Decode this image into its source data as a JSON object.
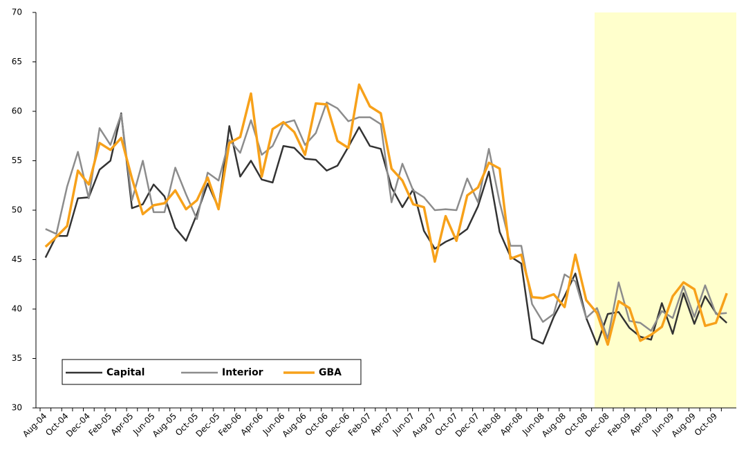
{
  "chart_data": {
    "type": "line",
    "categories": [
      "Aug-04",
      null,
      "Oct-04",
      null,
      "Dec-04",
      null,
      "Feb-05",
      null,
      "Apr-05",
      null,
      "Jun-05",
      null,
      "Aug-05",
      null,
      "Oct-05",
      null,
      "Dec-05",
      null,
      "Feb-06",
      null,
      "Apr-06",
      null,
      "Jun-06",
      null,
      "Aug-06",
      null,
      "Oct-06",
      null,
      "Dec-06",
      null,
      "Feb-07",
      null,
      "Apr-07",
      null,
      "Jun-07",
      null,
      "Aug-07",
      null,
      "Oct-07",
      null,
      "Dec-07",
      null,
      "Feb-08",
      null,
      "Apr-08",
      null,
      "Jun-08",
      null,
      "Aug-08",
      null,
      "Oct-08",
      null,
      "Dec-08",
      null,
      "Feb-09",
      null,
      "Apr-09",
      null,
      "Jun-09",
      null,
      "Aug-09",
      null,
      "Oct-09",
      null
    ],
    "series": [
      {
        "name": "Capital",
        "color": "#333333",
        "values": [
          45.2,
          47.4,
          47.4,
          51.2,
          51.3,
          54.1,
          55.0,
          59.8,
          50.2,
          50.6,
          52.6,
          51.4,
          48.2,
          46.9,
          49.6,
          52.7,
          50.2,
          58.5,
          53.4,
          55.0,
          53.1,
          52.8,
          56.5,
          56.3,
          55.2,
          55.1,
          54.0,
          54.5,
          56.4,
          58.4,
          56.5,
          56.2,
          52.3,
          50.3,
          52.1,
          47.9,
          46.1,
          46.8,
          47.3,
          48.1,
          50.4,
          53.9,
          47.8,
          45.3,
          44.6,
          37.0,
          36.5,
          39.2,
          41.3,
          43.6,
          39.1,
          36.4,
          39.5,
          39.7,
          38.1,
          37.2,
          36.9,
          40.6,
          37.5,
          41.6,
          38.5,
          41.3,
          39.6,
          38.6
        ]
      },
      {
        "name": "Interior",
        "color": "#8c8c8c",
        "values": [
          48.1,
          47.6,
          52.4,
          55.9,
          51.2,
          58.3,
          56.6,
          59.7,
          51.0,
          55.0,
          49.8,
          49.8,
          54.3,
          51.6,
          49.1,
          53.8,
          53.0,
          57.1,
          55.8,
          59.1,
          55.6,
          56.5,
          58.8,
          59.1,
          56.6,
          57.8,
          60.9,
          60.3,
          59.0,
          59.4,
          59.4,
          58.7,
          50.8,
          54.7,
          52.0,
          51.3,
          50.0,
          50.1,
          50.0,
          53.2,
          50.8,
          56.2,
          50.8,
          46.4,
          46.4,
          40.5,
          38.7,
          39.5,
          43.5,
          42.8,
          39.1,
          40.1,
          37.0,
          42.7,
          38.8,
          38.6,
          37.8,
          39.8,
          39.1,
          42.3,
          39.2,
          42.4,
          39.5,
          39.6
        ]
      },
      {
        "name": "GBA",
        "color": "#f7a11a",
        "values": [
          46.3,
          47.3,
          48.4,
          54.0,
          52.6,
          56.8,
          56.1,
          57.3,
          53.2,
          49.6,
          50.5,
          50.7,
          52.0,
          50.1,
          51.0,
          53.3,
          50.1,
          56.8,
          57.4,
          61.8,
          53.4,
          58.2,
          58.9,
          57.9,
          55.6,
          60.8,
          60.7,
          57.0,
          56.3,
          62.7,
          60.5,
          59.8,
          54.2,
          53.0,
          50.6,
          50.3,
          44.8,
          49.4,
          46.9,
          51.5,
          52.3,
          54.8,
          54.2,
          45.1,
          45.5,
          41.2,
          41.1,
          41.5,
          40.2,
          45.5,
          40.9,
          39.6,
          36.4,
          40.8,
          40.1,
          36.8,
          37.4,
          38.2,
          41.3,
          42.7,
          42.0,
          38.3,
          38.6,
          41.6
        ]
      }
    ],
    "ylim": [
      30,
      70
    ],
    "yticks": [
      30,
      35,
      40,
      45,
      50,
      55,
      60,
      65,
      70
    ],
    "grid": false
  }
}
